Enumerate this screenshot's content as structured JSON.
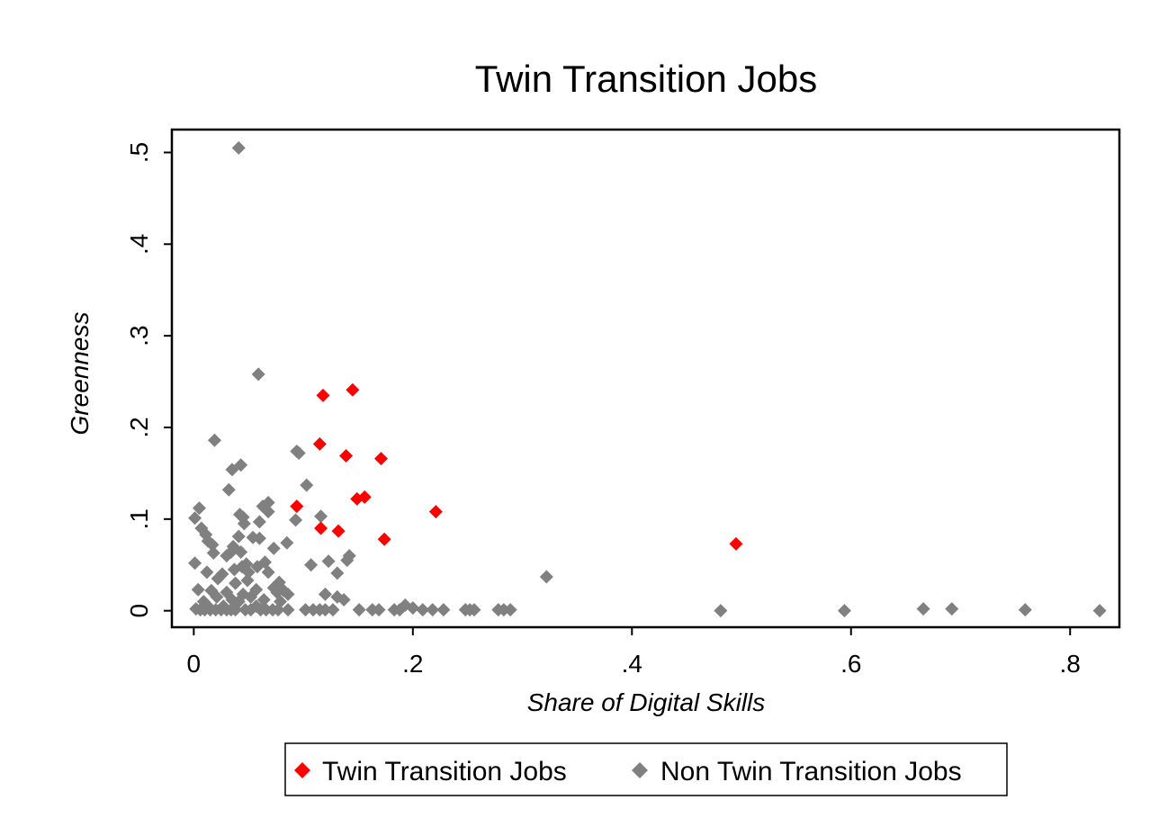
{
  "chart_data": {
    "type": "scatter",
    "title": "Twin Transition Jobs",
    "xlabel": "Share of Digital Skills",
    "ylabel": "Greenness",
    "xlim": [
      -0.02,
      0.845
    ],
    "ylim": [
      -0.018,
      0.525
    ],
    "x_ticks": [
      {
        "value": 0,
        "label": "0"
      },
      {
        "value": 0.2,
        "label": ".2"
      },
      {
        "value": 0.4,
        "label": ".4"
      },
      {
        "value": 0.6,
        "label": ".6"
      },
      {
        "value": 0.8,
        "label": ".8"
      }
    ],
    "y_ticks": [
      {
        "value": 0,
        "label": "0"
      },
      {
        "value": 0.1,
        "label": ".1"
      },
      {
        "value": 0.2,
        "label": ".2"
      },
      {
        "value": 0.3,
        "label": ".3"
      },
      {
        "value": 0.4,
        "label": ".4"
      },
      {
        "value": 0.5,
        "label": ".5"
      }
    ],
    "grid": false,
    "legend_position": "bottom",
    "marker": "diamond",
    "series": [
      {
        "name": "Non Twin Transition Jobs",
        "color": "#808080",
        "points": [
          [
            0.041,
            0.505
          ],
          [
            0.059,
            0.258
          ],
          [
            0.019,
            0.186
          ],
          [
            0.094,
            0.174
          ],
          [
            0.096,
            0.172
          ],
          [
            0.043,
            0.159
          ],
          [
            0.035,
            0.154
          ],
          [
            0.103,
            0.137
          ],
          [
            0.032,
            0.132
          ],
          [
            0.068,
            0.118
          ],
          [
            0.063,
            0.114
          ],
          [
            0.005,
            0.112
          ],
          [
            0.068,
            0.108
          ],
          [
            0.042,
            0.105
          ],
          [
            0.116,
            0.103
          ],
          [
            0.045,
            0.102
          ],
          [
            0.001,
            0.101
          ],
          [
            0.093,
            0.099
          ],
          [
            0.06,
            0.097
          ],
          [
            0.046,
            0.095
          ],
          [
            0.007,
            0.09
          ],
          [
            0.011,
            0.083
          ],
          [
            0.041,
            0.081
          ],
          [
            0.054,
            0.08
          ],
          [
            0.06,
            0.079
          ],
          [
            0.013,
            0.076
          ],
          [
            0.085,
            0.074
          ],
          [
            0.017,
            0.072
          ],
          [
            0.036,
            0.07
          ],
          [
            0.073,
            0.068
          ],
          [
            0.034,
            0.064
          ],
          [
            0.018,
            0.063
          ],
          [
            0.043,
            0.064
          ],
          [
            0.03,
            0.06
          ],
          [
            0.142,
            0.06
          ],
          [
            0.14,
            0.055
          ],
          [
            0.123,
            0.054
          ],
          [
            0.065,
            0.053
          ],
          [
            0.001,
            0.052
          ],
          [
            0.048,
            0.051
          ],
          [
            0.107,
            0.05
          ],
          [
            0.044,
            0.048
          ],
          [
            0.058,
            0.048
          ],
          [
            0.037,
            0.045
          ],
          [
            0.026,
            0.04
          ],
          [
            0.05,
            0.042
          ],
          [
            0.012,
            0.042
          ],
          [
            0.068,
            0.042
          ],
          [
            0.131,
            0.041
          ],
          [
            0.022,
            0.035
          ],
          [
            0.049,
            0.033
          ],
          [
            0.038,
            0.03
          ],
          [
            0.078,
            0.031
          ],
          [
            0.073,
            0.025
          ],
          [
            0.004,
            0.023
          ],
          [
            0.016,
            0.022
          ],
          [
            0.057,
            0.023
          ],
          [
            0.082,
            0.022
          ],
          [
            0.03,
            0.02
          ],
          [
            0.076,
            0.02
          ],
          [
            0.045,
            0.018
          ],
          [
            0.086,
            0.018
          ],
          [
            0.12,
            0.018
          ],
          [
            0.021,
            0.015
          ],
          [
            0.052,
            0.015
          ],
          [
            0.131,
            0.015
          ],
          [
            0.035,
            0.012
          ],
          [
            0.064,
            0.012
          ],
          [
            0.137,
            0.012
          ],
          [
            0.009,
            0.01
          ],
          [
            0.041,
            0.01
          ],
          [
            0.079,
            0.01
          ],
          [
            0.012,
            0.006
          ],
          [
            0.027,
            0.005
          ],
          [
            0.057,
            0.005
          ],
          [
            0.002,
            0.002
          ],
          [
            0.006,
            0.001
          ],
          [
            0.01,
            0.001
          ],
          [
            0.015,
            0.001
          ],
          [
            0.02,
            0.001
          ],
          [
            0.025,
            0.001
          ],
          [
            0.03,
            0.001
          ],
          [
            0.034,
            0.001
          ],
          [
            0.038,
            0.001
          ],
          [
            0.047,
            0.001
          ],
          [
            0.052,
            0.001
          ],
          [
            0.061,
            0.001
          ],
          [
            0.066,
            0.001
          ],
          [
            0.072,
            0.001
          ],
          [
            0.077,
            0.001
          ],
          [
            0.086,
            0.001
          ],
          [
            0.102,
            0.001
          ],
          [
            0.109,
            0.001
          ],
          [
            0.115,
            0.001
          ],
          [
            0.12,
            0.001
          ],
          [
            0.127,
            0.001
          ],
          [
            0.151,
            0.001
          ],
          [
            0.163,
            0.001
          ],
          [
            0.169,
            0.001
          ],
          [
            0.183,
            0.001
          ],
          [
            0.188,
            0.001
          ],
          [
            0.193,
            0.006
          ],
          [
            0.2,
            0.003
          ],
          [
            0.209,
            0.001
          ],
          [
            0.218,
            0.001
          ],
          [
            0.228,
            0.001
          ],
          [
            0.248,
            0.001
          ],
          [
            0.252,
            0.001
          ],
          [
            0.256,
            0.001
          ],
          [
            0.278,
            0.001
          ],
          [
            0.283,
            0.001
          ],
          [
            0.289,
            0.001
          ],
          [
            0.322,
            0.037
          ],
          [
            0.481,
            0.0
          ],
          [
            0.594,
            0.0
          ],
          [
            0.666,
            0.002
          ],
          [
            0.692,
            0.002
          ],
          [
            0.759,
            0.001
          ],
          [
            0.827,
            0.0
          ]
        ]
      },
      {
        "name": "Twin Transition Jobs",
        "color": "#ff0000",
        "points": [
          [
            0.145,
            0.241
          ],
          [
            0.118,
            0.235
          ],
          [
            0.115,
            0.182
          ],
          [
            0.139,
            0.169
          ],
          [
            0.171,
            0.166
          ],
          [
            0.156,
            0.124
          ],
          [
            0.149,
            0.122
          ],
          [
            0.094,
            0.114
          ],
          [
            0.221,
            0.108
          ],
          [
            0.116,
            0.09
          ],
          [
            0.132,
            0.087
          ],
          [
            0.174,
            0.078
          ],
          [
            0.495,
            0.073
          ]
        ]
      }
    ],
    "legend": [
      {
        "label": "Twin Transition Jobs",
        "color": "#ff0000"
      },
      {
        "label": "Non Twin Transition Jobs",
        "color": "#808080"
      }
    ]
  }
}
